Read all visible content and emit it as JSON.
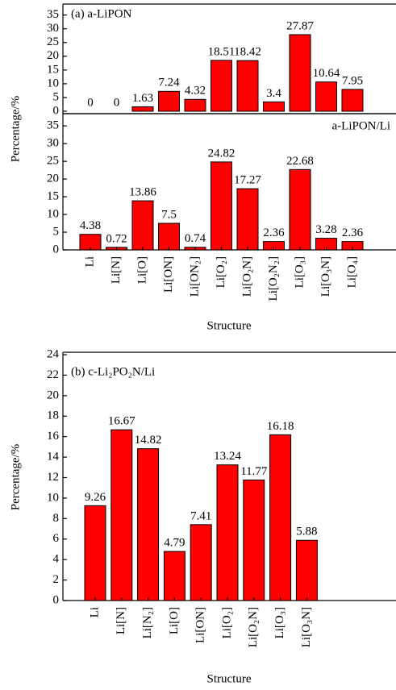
{
  "chart_data": [
    {
      "type": "bar",
      "title": "(a) a-LiPON",
      "values": [
        0,
        0,
        1.63,
        7.24,
        4.32,
        18.51,
        18.42,
        3.4,
        27.87,
        10.64,
        7.95
      ],
      "color": "#ff0000",
      "ylim": [
        0,
        39
      ],
      "yticks": [
        0,
        5,
        10,
        15,
        20,
        25,
        30,
        35
      ]
    },
    {
      "type": "bar",
      "title": "a-LiPON/Li",
      "y_label": "Percentage/%",
      "x_label": "Structure",
      "categories": [
        "Li",
        "Li[N]",
        "Li[O]",
        "Li[ON]",
        "Li[ON₂]",
        "Li[O₂]",
        "Li[O₂N]",
        "Li[O₂N₂]",
        "Li[O₃]",
        "Li[O₃N]",
        "Li[O₄]"
      ],
      "values": [
        4.38,
        0.72,
        13.86,
        7.5,
        0.74,
        24.82,
        17.27,
        2.36,
        22.68,
        3.28,
        2.36
      ],
      "color": "#ff0000",
      "ylim": [
        0,
        38
      ],
      "yticks": [
        0,
        5,
        10,
        15,
        20,
        25,
        30,
        35
      ]
    },
    {
      "type": "bar",
      "title": "(b) c-Li₂PO₂N/Li",
      "y_label": "Percentage/%",
      "x_label": "Structure",
      "categories": [
        "Li",
        "Li[N]",
        "Li[N₂]",
        "Li[O]",
        "Li[ON]",
        "Li[O₂]",
        "Li[O₂N]",
        "Li[O₃]",
        "Li[O₃N]"
      ],
      "values": [
        9.26,
        16.67,
        14.82,
        4.79,
        7.41,
        13.24,
        11.77,
        16.18,
        5.88
      ],
      "color": "#ff0000",
      "ylim": [
        0,
        24
      ],
      "yticks": [
        0,
        2,
        4,
        6,
        8,
        10,
        12,
        14,
        16,
        18,
        20,
        22,
        24
      ]
    }
  ]
}
